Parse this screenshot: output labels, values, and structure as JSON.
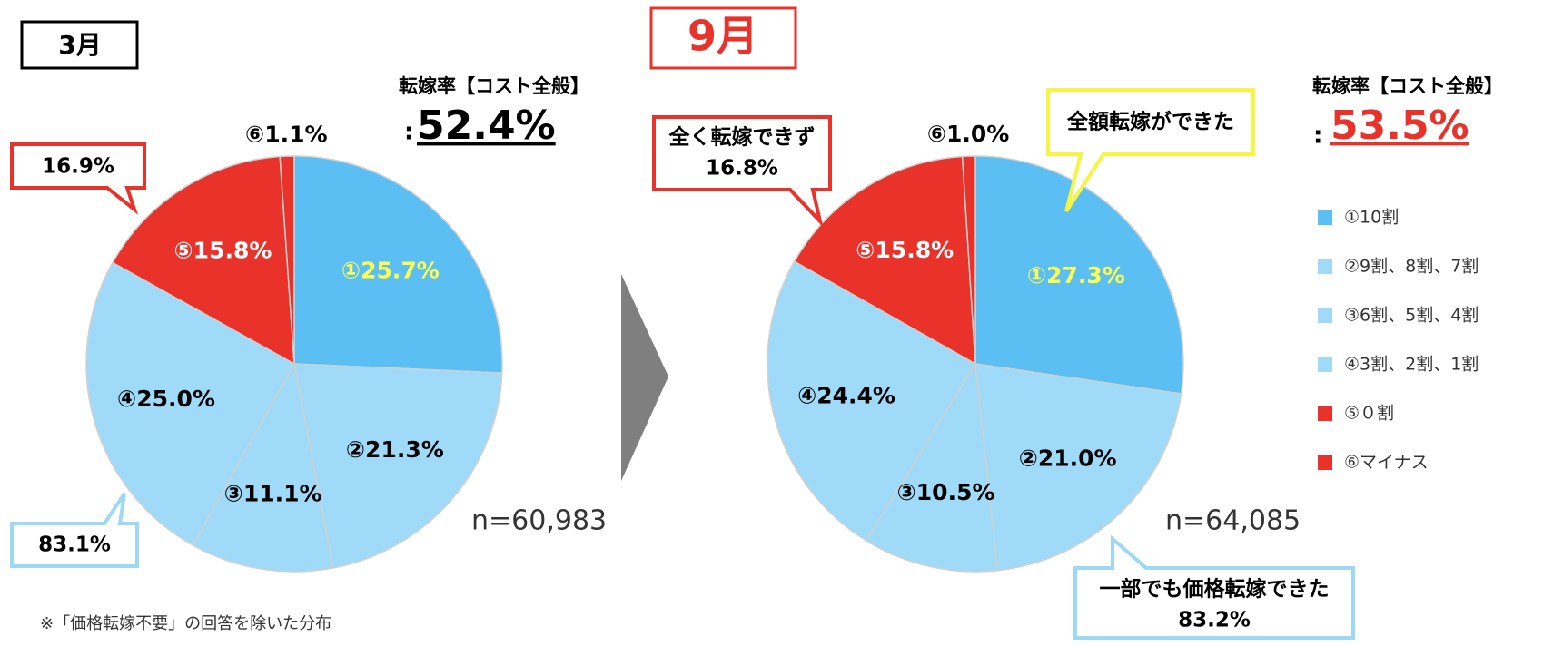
{
  "legend": {
    "categories": [
      "①10割",
      "②9割、8割、7割",
      "③6割、5割、4割",
      "④3割、2割、1割",
      "⑤０割",
      "⑥マイナス"
    ],
    "colors": [
      "#5bbff4",
      "#9fdbf8",
      "#9fdbf8",
      "#9fdbf8",
      "#e8322a",
      "#e8322a"
    ]
  },
  "chart_data": [
    {
      "type": "pie",
      "title": "3月",
      "rate_title": "転嫁率【コスト全般】",
      "rate_prefix": ":",
      "rate": "52.4%",
      "values": [
        25.7,
        21.3,
        11.1,
        25.0,
        15.8,
        1.1
      ],
      "value_labels": [
        "①25.7%",
        "②21.3%",
        "③11.1%",
        "④25.0%",
        "⑤15.8%",
        "⑥1.1%"
      ],
      "label_colors": [
        "#ffff4d",
        "#000000",
        "#000000",
        "#000000",
        "#ffffff",
        "#000000"
      ],
      "n": "n=60,983",
      "callouts": [
        {
          "lines": [
            "16.9%"
          ]
        },
        {
          "lines": [
            "83.1%"
          ]
        }
      ]
    },
    {
      "type": "pie",
      "title": "9月",
      "rate_title": "転嫁率【コスト全般】",
      "rate_prefix": ":",
      "rate": "53.5%",
      "values": [
        27.3,
        21.0,
        10.5,
        24.4,
        15.8,
        1.0
      ],
      "value_labels": [
        "①27.3%",
        "②21.0%",
        "③10.5%",
        "④24.4%",
        "⑤15.8%",
        "⑥1.0%"
      ],
      "label_colors": [
        "#ffff4d",
        "#000000",
        "#000000",
        "#000000",
        "#ffffff",
        "#000000"
      ],
      "n": "n=64,085",
      "callouts": [
        {
          "lines": [
            "全く転嫁できず",
            "16.8%"
          ]
        },
        {
          "lines": [
            "全額転嫁ができた"
          ]
        },
        {
          "lines": [
            "一部でも価格転嫁できた",
            "83.2%"
          ]
        }
      ]
    }
  ],
  "footnote": "※「価格転嫁不要」の回答を除いた分布"
}
